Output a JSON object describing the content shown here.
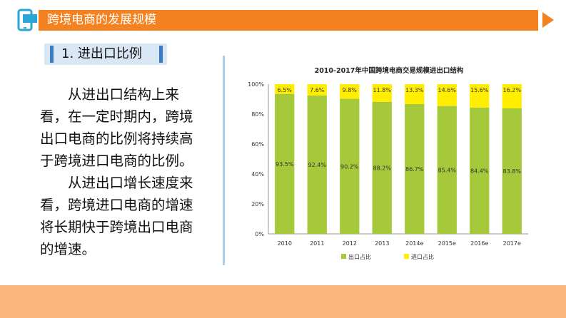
{
  "header": {
    "title": "跨境电商的发展规模",
    "accent": "#f58220",
    "logo_icon": "phone-window-icon"
  },
  "section": {
    "label": "1. 进出口比例"
  },
  "body": {
    "paragraphs": [
      "从进出口结构上来看，在一定时期内，跨境出口电商的比例将持续高于跨境进口电商的比例。",
      "从进出口增长速度来看，跨境进口电商的增速将长期快于跨境出口电商的增速。"
    ]
  },
  "chart_data": {
    "type": "bar",
    "stacked": true,
    "title": "2010-2017年中国跨境电商交易规模进出口结构",
    "categories": [
      "2010",
      "2011",
      "2012",
      "2013",
      "2014e",
      "2015e",
      "2016e",
      "2017e"
    ],
    "series": [
      {
        "name": "出口占比",
        "color": "#a5c93a",
        "values": [
          93.5,
          92.4,
          90.2,
          88.2,
          86.7,
          85.4,
          84.4,
          83.8
        ],
        "labels": [
          "93.5%",
          "92.4%",
          "90.2%",
          "88.2%",
          "86.7%",
          "85.4%",
          "84.4%",
          "83.8%"
        ]
      },
      {
        "name": "进口占比",
        "color": "#ffee00",
        "values": [
          6.5,
          7.6,
          9.8,
          11.8,
          13.3,
          14.6,
          15.6,
          16.2
        ],
        "labels": [
          "6.5%",
          "7.6%",
          "9.8%",
          "11.8%",
          "13.3%",
          "14.6%",
          "15.6%",
          "16.2%"
        ]
      }
    ],
    "y_ticks": [
      "0%",
      "20%",
      "40%",
      "60%",
      "80%",
      "100%"
    ],
    "ylim": [
      0,
      100
    ],
    "legend": "bottom",
    "grid": false
  }
}
